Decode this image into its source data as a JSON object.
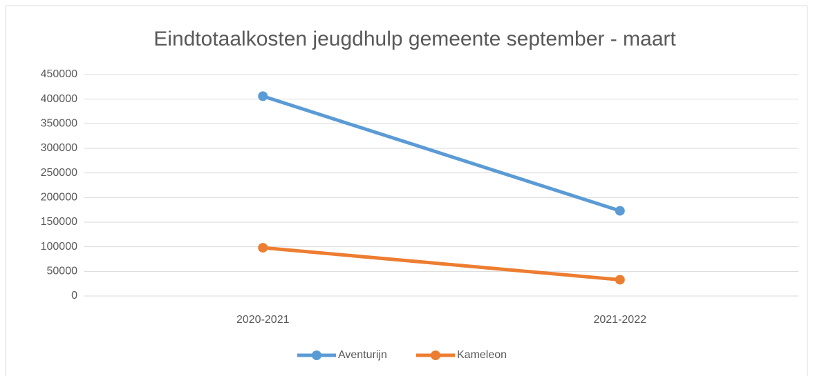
{
  "chart_data": {
    "type": "line",
    "title": "Eindtotaalkosten jeugdhulp gemeente september - maart",
    "categories": [
      "2020-2021",
      "2021-2022"
    ],
    "series": [
      {
        "name": "Aventurijn",
        "color": "#5b9bd5",
        "values": [
          406000,
          173000
        ]
      },
      {
        "name": "Kameleon",
        "color": "#ed7d31",
        "values": [
          98000,
          33000
        ]
      }
    ],
    "ylim": [
      0,
      450000
    ],
    "yticks": [
      0,
      50000,
      100000,
      150000,
      200000,
      250000,
      300000,
      350000,
      400000,
      450000
    ],
    "grid": true,
    "legend": "bottom"
  }
}
